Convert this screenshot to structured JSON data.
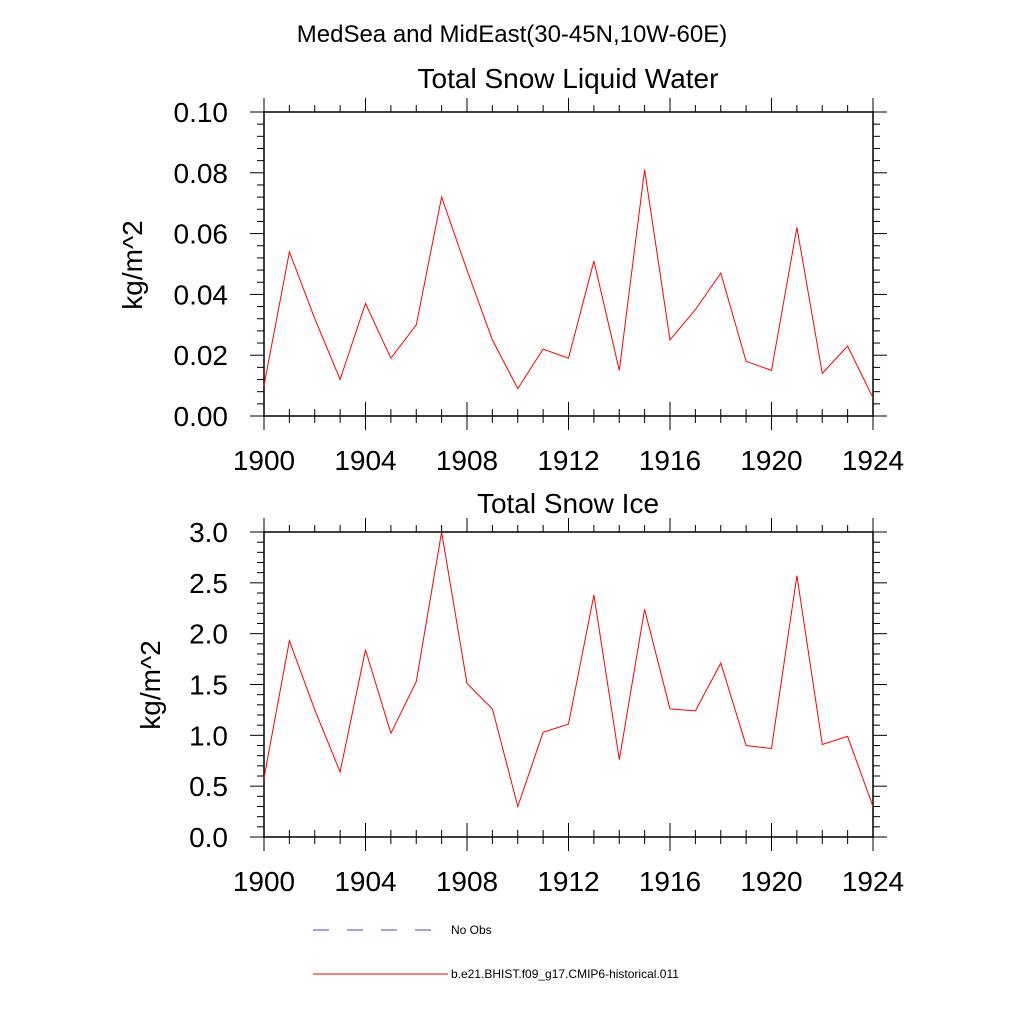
{
  "figure": {
    "main_title": "MedSea and MidEast(30-45N,10W-60E)"
  },
  "chart_data": [
    {
      "type": "line",
      "title": "Total Snow Liquid Water",
      "xlabel": "",
      "ylabel": "kg/m^2",
      "xlim": [
        1900,
        1924
      ],
      "ylim": [
        0.0,
        0.1
      ],
      "x_ticks": [
        1900,
        1904,
        1908,
        1912,
        1916,
        1920,
        1924
      ],
      "x_tick_labels": [
        "1900",
        "1904",
        "1908",
        "1912",
        "1916",
        "1920",
        "1924"
      ],
      "y_ticks": [
        0.0,
        0.02,
        0.04,
        0.06,
        0.08,
        0.1
      ],
      "y_tick_labels": [
        "0.00",
        "0.02",
        "0.04",
        "0.06",
        "0.08",
        "0.10"
      ],
      "grid": false,
      "x": [
        1900,
        1901,
        1902,
        1903,
        1904,
        1905,
        1906,
        1907,
        1908,
        1909,
        1910,
        1911,
        1912,
        1913,
        1914,
        1915,
        1916,
        1917,
        1918,
        1919,
        1920,
        1921,
        1922,
        1923,
        1924
      ],
      "series": [
        {
          "name": "b.e21.BHIST.f09_g17.CMIP6-historical.011",
          "color": "#ff0000",
          "values": [
            0.01,
            0.054,
            0.032,
            0.012,
            0.037,
            0.019,
            0.03,
            0.072,
            0.048,
            0.025,
            0.009,
            0.022,
            0.019,
            0.051,
            0.015,
            0.081,
            0.025,
            0.035,
            0.047,
            0.018,
            0.015,
            0.062,
            0.014,
            0.023,
            0.006
          ]
        }
      ]
    },
    {
      "type": "line",
      "title": "Total Snow Ice",
      "xlabel": "",
      "ylabel": "kg/m^2",
      "xlim": [
        1900,
        1924
      ],
      "ylim": [
        0.0,
        3.0
      ],
      "x_ticks": [
        1900,
        1904,
        1908,
        1912,
        1916,
        1920,
        1924
      ],
      "x_tick_labels": [
        "1900",
        "1904",
        "1908",
        "1912",
        "1916",
        "1920",
        "1924"
      ],
      "y_ticks": [
        0.0,
        0.5,
        1.0,
        1.5,
        2.0,
        2.5,
        3.0
      ],
      "y_tick_labels": [
        "0.0",
        "0.5",
        "1.0",
        "1.5",
        "2.0",
        "2.5",
        "3.0"
      ],
      "grid": false,
      "x": [
        1900,
        1901,
        1902,
        1903,
        1904,
        1905,
        1906,
        1907,
        1908,
        1909,
        1910,
        1911,
        1912,
        1913,
        1914,
        1915,
        1916,
        1917,
        1918,
        1919,
        1920,
        1921,
        1922,
        1923,
        1924
      ],
      "series": [
        {
          "name": "b.e21.BHIST.f09_g17.CMIP6-historical.011",
          "color": "#ff0000",
          "values": [
            0.58,
            1.93,
            1.25,
            0.64,
            1.84,
            1.02,
            1.53,
            3.0,
            1.51,
            1.26,
            0.3,
            1.03,
            1.11,
            2.38,
            0.76,
            2.24,
            1.26,
            1.24,
            1.71,
            0.9,
            0.87,
            2.57,
            0.91,
            0.99,
            0.3
          ]
        }
      ]
    }
  ],
  "legend": {
    "placement": "bottom",
    "items": [
      {
        "label": "No Obs",
        "color": "#4a4a9a",
        "style": "dashed"
      },
      {
        "label": "b.e21.BHIST.f09_g17.CMIP6-historical.011",
        "color": "#ff0000",
        "style": "solid"
      }
    ]
  }
}
